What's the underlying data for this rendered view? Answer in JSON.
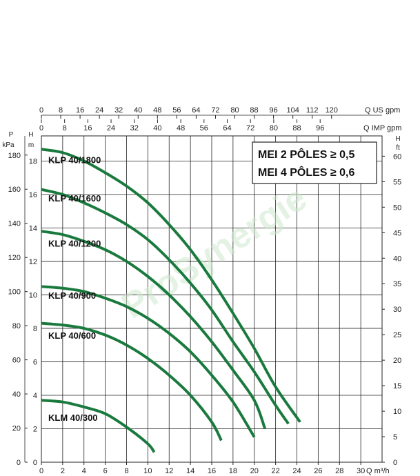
{
  "chart_data": {
    "type": "line",
    "x_axis": {
      "label": "Q m³/h",
      "range": [
        0,
        32
      ],
      "ticks": [
        "0",
        "2",
        "4",
        "6",
        "8",
        "10",
        "12",
        "14",
        "16",
        "18",
        "20",
        "22",
        "24",
        "26",
        "28",
        "30"
      ]
    },
    "top_axis_us": {
      "label": "Q US gpm",
      "ticks": [
        "0",
        "8",
        "16",
        "24",
        "32",
        "40",
        "48",
        "56",
        "64",
        "72",
        "80",
        "88",
        "96",
        "104",
        "112",
        "120"
      ]
    },
    "top_axis_imp": {
      "label": "Q IMP gpm",
      "ticks": [
        "0",
        "8",
        "16",
        "24",
        "32",
        "40",
        "48",
        "56",
        "64",
        "72",
        "80",
        "88",
        "96"
      ]
    },
    "y_left_m": {
      "label": "H m",
      "range": [
        0,
        19.5
      ],
      "ticks": [
        "0",
        "2",
        "4",
        "6",
        "8",
        "10",
        "12",
        "14",
        "16",
        "18"
      ]
    },
    "y_left_kpa": {
      "label": "P kPa",
      "ticks": [
        "0",
        "20",
        "40",
        "60",
        "80",
        "100",
        "120",
        "140",
        "160",
        "180"
      ]
    },
    "y_right_ft": {
      "label": "H ft",
      "ticks": [
        "0",
        "5",
        "10",
        "15",
        "20",
        "25",
        "30",
        "35",
        "40",
        "45",
        "50",
        "55",
        "60"
      ]
    },
    "annotation": {
      "line1": "MEI 2 PÔLES ≥ 0,5",
      "line2": "MEI 4 PÔLES ≥ 0,6"
    },
    "watermark": "ProSynergie",
    "series": [
      {
        "name": "KLP 40/1800",
        "x": [
          0,
          2,
          4,
          6,
          8,
          10,
          12,
          14,
          16,
          18,
          20,
          22,
          24.3
        ],
        "y": [
          18.7,
          18.5,
          18.0,
          17.3,
          16.5,
          15.5,
          14.2,
          12.7,
          10.9,
          8.9,
          6.8,
          4.5,
          2.4
        ]
      },
      {
        "name": "KLP 40/1600",
        "x": [
          0,
          2,
          4,
          6,
          8,
          10,
          12,
          14,
          16,
          18,
          20,
          22,
          23.2
        ],
        "y": [
          16.3,
          16.0,
          15.5,
          14.9,
          14.2,
          13.3,
          12.1,
          10.7,
          9.1,
          7.2,
          5.4,
          3.4,
          2.3
        ]
      },
      {
        "name": "KLP 40/1200",
        "x": [
          0,
          2,
          4,
          6,
          8,
          10,
          12,
          14,
          16,
          18,
          20,
          21
        ],
        "y": [
          13.8,
          13.6,
          13.2,
          12.7,
          12.0,
          11.1,
          10.0,
          8.7,
          7.2,
          5.5,
          3.7,
          2.0
        ]
      },
      {
        "name": "KLP 40/900",
        "x": [
          0,
          2,
          4,
          6,
          8,
          10,
          12,
          14,
          16,
          18,
          20
        ],
        "y": [
          10.5,
          10.4,
          10.2,
          9.8,
          9.3,
          8.6,
          7.7,
          6.6,
          5.2,
          3.6,
          1.5
        ]
      },
      {
        "name": "KLP 40/600",
        "x": [
          0,
          2,
          4,
          6,
          8,
          10,
          12,
          14,
          16,
          16.9
        ],
        "y": [
          8.3,
          8.2,
          8.0,
          7.6,
          7.0,
          6.2,
          5.2,
          4.0,
          2.4,
          1.3
        ]
      },
      {
        "name": "KLM 40/300",
        "x": [
          0,
          2,
          4,
          6,
          8,
          10,
          10.6
        ],
        "y": [
          3.7,
          3.6,
          3.3,
          2.9,
          2.1,
          1.1,
          0.6
        ]
      }
    ],
    "label_positions_data": [
      {
        "series": 0,
        "text": "KLP 40/1800"
      },
      {
        "series": 1,
        "text": "KLP 40/1600"
      },
      {
        "series": 2,
        "text": "KLP 40/1200"
      },
      {
        "series": 3,
        "text": "KLP 40/900"
      },
      {
        "series": 4,
        "text": "KLP 40/600"
      },
      {
        "series": 5,
        "text": "KLM 40/300"
      }
    ],
    "colors": {
      "curve": "#1a7a3e",
      "grid": "#222222",
      "background": "#ffffff"
    },
    "grid": true
  }
}
